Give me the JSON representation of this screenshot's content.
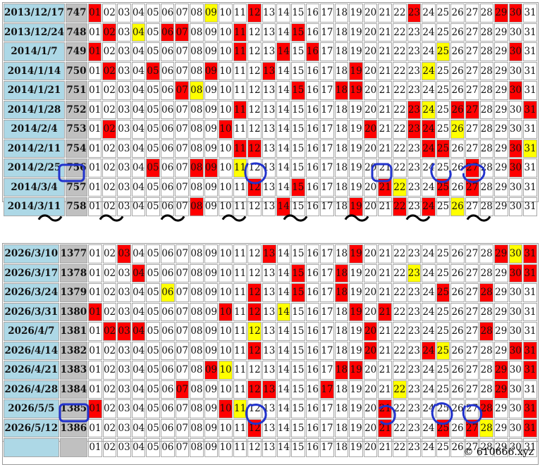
{
  "top_table": {
    "rows": [
      {
        "date": "2013/12/17",
        "issue": "747",
        "red": [
          1,
          12,
          23,
          29,
          30
        ],
        "yellow": [
          9
        ]
      },
      {
        "date": "2013/12/24",
        "issue": "748",
        "red": [
          2,
          6,
          7,
          11,
          15
        ],
        "yellow": [
          4
        ]
      },
      {
        "date": "2014/1/7",
        "issue": "749",
        "red": [
          1,
          11,
          14,
          16,
          30
        ],
        "yellow": [
          25
        ]
      },
      {
        "date": "2014/1/14",
        "issue": "750",
        "red": [
          2,
          5,
          9,
          13,
          19
        ],
        "yellow": [
          24
        ]
      },
      {
        "date": "2014/1/21",
        "issue": "751",
        "red": [
          7,
          15,
          18,
          19,
          30
        ],
        "yellow": [
          8
        ]
      },
      {
        "date": "2014/1/28",
        "issue": "752",
        "red": [
          11,
          23,
          26,
          27,
          31
        ],
        "yellow": [
          24
        ]
      },
      {
        "date": "2014/2/4",
        "issue": "753",
        "red": [
          2,
          10,
          20,
          23,
          24
        ],
        "yellow": [
          26
        ]
      },
      {
        "date": "2014/2/11",
        "issue": "754",
        "red": [
          11,
          12,
          24,
          25,
          30
        ],
        "yellow": [
          31
        ]
      },
      {
        "date": "2014/2/25",
        "issue": "756",
        "red": [
          5,
          8,
          9,
          27,
          30
        ],
        "yellow": [
          11
        ]
      },
      {
        "date": "2014/3/4",
        "issue": "757",
        "red": [
          12,
          15,
          21,
          25,
          27
        ],
        "yellow": [
          22
        ]
      },
      {
        "date": "2014/3/11",
        "issue": "758",
        "red": [
          8,
          14,
          19,
          22,
          24
        ],
        "yellow": [
          26
        ]
      }
    ]
  },
  "separator": {
    "glyph": "～"
  },
  "bottom_table": {
    "rows": [
      {
        "date": "2026/3/10",
        "issue": "1377",
        "red": [
          3,
          13,
          19,
          29,
          31
        ],
        "yellow": [
          30
        ]
      },
      {
        "date": "2026/3/17",
        "issue": "1378",
        "red": [
          4,
          15,
          18,
          30,
          31
        ],
        "yellow": [
          23
        ]
      },
      {
        "date": "2026/3/24",
        "issue": "1379",
        "red": [
          12,
          15,
          18,
          25,
          28
        ],
        "yellow": [
          6
        ]
      },
      {
        "date": "2026/3/31",
        "issue": "1380",
        "red": [
          1,
          10,
          12,
          19,
          21
        ],
        "yellow": [
          14
        ]
      },
      {
        "date": "2026/4/7",
        "issue": "1381",
        "red": [
          2,
          3,
          4,
          20,
          28
        ],
        "yellow": [
          12
        ]
      },
      {
        "date": "2026/4/14",
        "issue": "1382",
        "red": [
          12,
          20,
          24,
          30,
          31
        ],
        "yellow": [
          25
        ]
      },
      {
        "date": "2026/4/21",
        "issue": "1383",
        "red": [
          9,
          18,
          19,
          29,
          31
        ],
        "yellow": [
          10
        ]
      },
      {
        "date": "2026/4/28",
        "issue": "1384",
        "red": [
          7,
          12,
          13,
          17,
          29
        ],
        "yellow": [
          22
        ]
      },
      {
        "date": "2026/5/5",
        "issue": "1385",
        "red": [
          1,
          10,
          21,
          28,
          31
        ],
        "yellow": [
          11
        ]
      },
      {
        "date": "2026/5/12",
        "issue": "1386",
        "red": [
          12,
          21,
          25,
          27,
          31
        ],
        "yellow": [
          28
        ]
      },
      {
        "date": "",
        "issue": "",
        "red": [],
        "yellow": []
      }
    ]
  },
  "footer": {
    "copyright": "© 610666.xyz"
  },
  "colors": {
    "hit": "#ff0000",
    "special": "#ffff00",
    "date_bg": "#add8e6",
    "issue_bg": "#c0c0c0",
    "circle": "#2233cc"
  }
}
